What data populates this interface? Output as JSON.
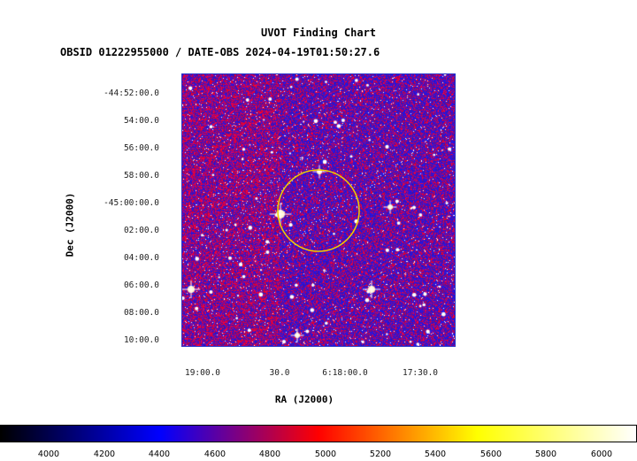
{
  "title": "UVOT Finding Chart",
  "subtitle": "OBSID 01222955000 / DATE-OBS 2024-04-19T01:50:27.6",
  "axes": {
    "ylabel": "Dec (J2000)",
    "xlabel": "RA (J2000)",
    "dec_ticks": [
      "-44:52:00.0",
      "54:00.0",
      "56:00.0",
      "58:00.0",
      "-45:00:00.0",
      "02:00.0",
      "04:00.0",
      "06:00.0",
      "08:00.0",
      "10:00.0"
    ],
    "ra_ticks": [
      "19:00.0",
      "30.0",
      "6:18:00.0",
      "17:30.0"
    ]
  },
  "colorbar": {
    "ticks": [
      "4000",
      "4200",
      "4400",
      "4600",
      "4800",
      "5000",
      "5200",
      "5400",
      "5600",
      "5800",
      "6000"
    ],
    "colors": [
      "#000000",
      "#0000ff",
      "#ff0000",
      "#ffff00",
      "#ffffff"
    ]
  },
  "region": {
    "shape": "circle",
    "color": "#f0d000"
  },
  "colors": {
    "sky_base": "#2b16c4",
    "frame": "#2a35c8"
  }
}
